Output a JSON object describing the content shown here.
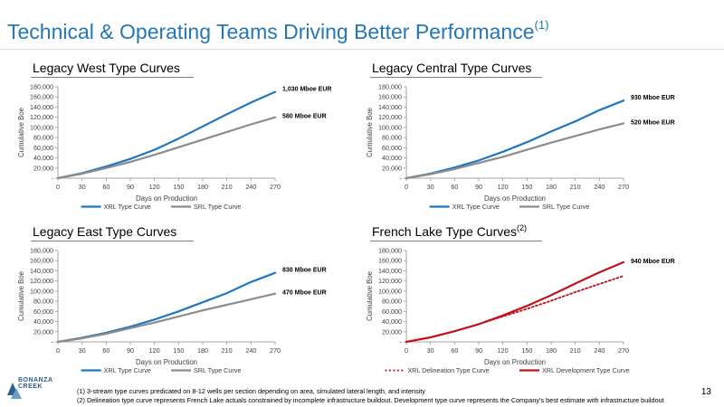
{
  "slide": {
    "title": "Technical & Operating Teams Driving Better Performance",
    "title_sup": "(1)",
    "page_number": "13",
    "logo_text": [
      "BONANZA",
      "CREEK"
    ],
    "footnotes": [
      "(1)   3-stream type curves predicated on 8-12 wells per section depending on area, simulated lateral length, and intensity",
      "(2)   Delineation type curve represents French Lake actuals constrained by incomplete infrastructure buildout. Development type curve represents the Company's best estimate with infrastructure buildout"
    ],
    "colors": {
      "title": "#2277b6",
      "xrl": "#1f77c0",
      "srl": "#8c8c8c",
      "french": "#c0141c"
    }
  },
  "chart_data": [
    {
      "id": "west",
      "type": "line",
      "title": "Legacy West Type Curves",
      "title_sup": "",
      "xlabel": "Days on Production",
      "ylabel": "Cumulative Boe",
      "x": [
        0,
        30,
        60,
        90,
        120,
        150,
        180,
        210,
        240,
        270
      ],
      "xticks": [
        "0",
        "30",
        "60",
        "90",
        "120",
        "150",
        "180",
        "210",
        "240",
        "270"
      ],
      "yticks": [
        "-",
        "20,000",
        "40,000",
        "60,000",
        "80,000",
        "100,000",
        "120,000",
        "140,000",
        "160,000",
        "180,000"
      ],
      "ylim": [
        0,
        180000
      ],
      "xlim": [
        0,
        270
      ],
      "series": [
        {
          "name": "XRL Type Curve",
          "color": "#1f77c0",
          "dash": false,
          "values": [
            0,
            10000,
            23000,
            38000,
            56000,
            78000,
            102000,
            126000,
            149000,
            170000
          ],
          "end_label": "1,030 Mboe EUR"
        },
        {
          "name": "SRL Type Curve",
          "color": "#8c8c8c",
          "dash": false,
          "values": [
            0,
            9000,
            20000,
            32000,
            46000,
            61000,
            76000,
            91000,
            106000,
            120000
          ],
          "end_label": "580 Mboe EUR"
        }
      ]
    },
    {
      "id": "central",
      "type": "line",
      "title": "Legacy Central Type Curves",
      "title_sup": "",
      "xlabel": "Days on Production",
      "ylabel": "Cumulative Boe",
      "x": [
        0,
        30,
        60,
        90,
        120,
        150,
        180,
        210,
        240,
        270
      ],
      "xticks": [
        "0",
        "30",
        "60",
        "90",
        "120",
        "150",
        "180",
        "210",
        "240",
        "270"
      ],
      "yticks": [
        "-",
        "20,000",
        "40,000",
        "60,000",
        "80,000",
        "100,000",
        "120,000",
        "140,000",
        "160,000",
        "180,000"
      ],
      "ylim": [
        0,
        180000
      ],
      "xlim": [
        0,
        270
      ],
      "series": [
        {
          "name": "XRL Type Curve",
          "color": "#1f77c0",
          "dash": false,
          "values": [
            0,
            9000,
            21000,
            35000,
            52000,
            71000,
            92000,
            112000,
            134000,
            153000
          ],
          "end_label": "930 Mboe EUR"
        },
        {
          "name": "SRL Type Curve",
          "color": "#8c8c8c",
          "dash": false,
          "values": [
            0,
            8000,
            18000,
            30000,
            42000,
            56000,
            70000,
            83000,
            96000,
            108000
          ],
          "end_label": "520 Mboe EUR"
        }
      ]
    },
    {
      "id": "east",
      "type": "line",
      "title": "Legacy East Type Curves",
      "title_sup": "",
      "xlabel": "Days on Production",
      "ylabel": "Cumulative Boe",
      "x": [
        0,
        30,
        60,
        90,
        120,
        150,
        180,
        210,
        240,
        270
      ],
      "xticks": [
        "0",
        "30",
        "60",
        "90",
        "120",
        "150",
        "180",
        "210",
        "240",
        "270"
      ],
      "yticks": [
        "-",
        "20,000",
        "40,000",
        "60,000",
        "80,000",
        "100,000",
        "120,000",
        "140,000",
        "160,000",
        "180,000"
      ],
      "ylim": [
        0,
        180000
      ],
      "xlim": [
        0,
        270
      ],
      "series": [
        {
          "name": "XRL Type Curve",
          "color": "#1f77c0",
          "dash": false,
          "values": [
            0,
            8000,
            18000,
            30000,
            44000,
            60000,
            78000,
            96000,
            118000,
            136000
          ],
          "end_label": "830 Mboe EUR"
        },
        {
          "name": "SRL Type Curve",
          "color": "#8c8c8c",
          "dash": false,
          "values": [
            0,
            7000,
            16000,
            27000,
            38000,
            50000,
            62000,
            73000,
            84000,
            95000
          ],
          "end_label": "470 Mboe EUR"
        }
      ]
    },
    {
      "id": "french",
      "type": "line",
      "title": "French Lake Type Curves",
      "title_sup": "(2)",
      "xlabel": "Days on Production",
      "ylabel": "Cumulative Boe",
      "x": [
        0,
        30,
        60,
        90,
        120,
        150,
        180,
        210,
        240,
        270
      ],
      "xticks": [
        "0",
        "30",
        "60",
        "90",
        "120",
        "150",
        "180",
        "210",
        "240",
        "270"
      ],
      "yticks": [
        "-",
        "20,000",
        "40,000",
        "60,000",
        "80,000",
        "100,000",
        "120,000",
        "140,000",
        "160,000",
        "180,000"
      ],
      "ylim": [
        0,
        180000
      ],
      "xlim": [
        0,
        270
      ],
      "series": [
        {
          "name": "XRL Delineation Type Curve",
          "color": "#c0141c",
          "dash": true,
          "values": [
            0,
            9000,
            21000,
            35000,
            50000,
            65000,
            81000,
            98000,
            114000,
            130000
          ],
          "end_label": ""
        },
        {
          "name": "XRL Development Type Curve",
          "color": "#c0141c",
          "dash": false,
          "values": [
            0,
            9000,
            21000,
            35000,
            52000,
            71000,
            92000,
            115000,
            137000,
            157000
          ],
          "end_label": "940 Mboe EUR"
        }
      ]
    }
  ]
}
